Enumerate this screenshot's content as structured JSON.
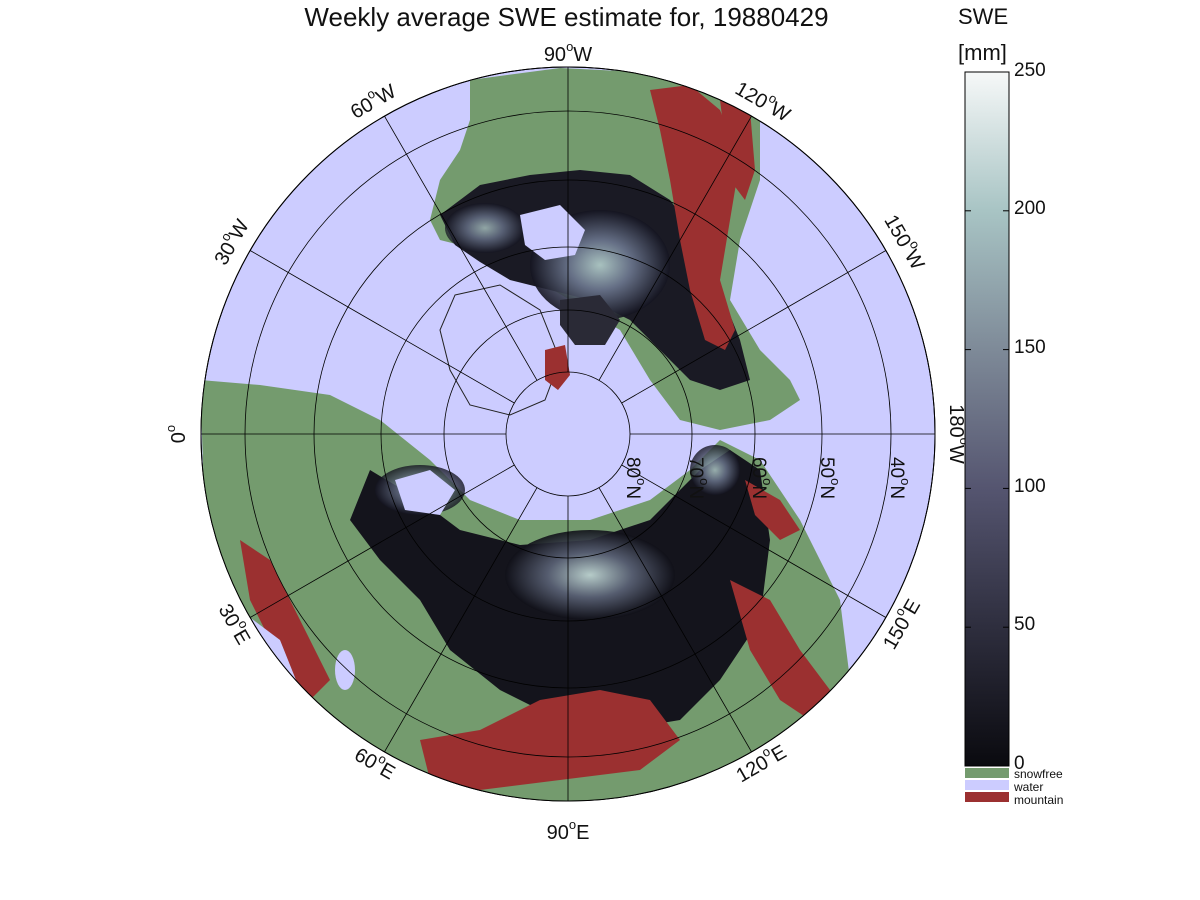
{
  "title": "Weekly average SWE estimate for, 19880429",
  "colorbar": {
    "title_line1": "SWE",
    "title_line2": "[mm]",
    "min": 0,
    "max": 250,
    "ticks": [
      "0",
      "50",
      "100",
      "150",
      "200",
      "250"
    ],
    "gradient_stops": [
      "#0a0a0f",
      "#2e2e3e",
      "#555570",
      "#7e8a98",
      "#a8c4c4",
      "#f6f8f8"
    ]
  },
  "legend": [
    {
      "label": "snowfree",
      "color": "#749b6e"
    },
    {
      "label": "water",
      "color": "#ccccff"
    },
    {
      "label": "mountain",
      "color": "#9b3030"
    }
  ],
  "map": {
    "projection": "north-polar-stereographic",
    "ocean_color": "#ccccff",
    "longitude_labels": [
      {
        "base": "90",
        "sup": "o",
        "suffix": "W"
      },
      {
        "base": "120",
        "sup": "o",
        "suffix": "W"
      },
      {
        "base": "150",
        "sup": "o",
        "suffix": "W"
      },
      {
        "base": "180",
        "sup": "o",
        "suffix": "W"
      },
      {
        "base": "150",
        "sup": "o",
        "suffix": "E"
      },
      {
        "base": "120",
        "sup": "o",
        "suffix": "E"
      },
      {
        "base": "90",
        "sup": "o",
        "suffix": "E"
      },
      {
        "base": "60",
        "sup": "o",
        "suffix": "E"
      },
      {
        "base": "30",
        "sup": "o",
        "suffix": "E"
      },
      {
        "base": "0",
        "sup": "o",
        "suffix": ""
      },
      {
        "base": "30",
        "sup": "o",
        "suffix": "W"
      },
      {
        "base": "60",
        "sup": "o",
        "suffix": "W"
      }
    ],
    "latitude_labels": [
      {
        "base": "80",
        "sup": "o",
        "suffix": "N"
      },
      {
        "base": "70",
        "sup": "o",
        "suffix": "N"
      },
      {
        "base": "60",
        "sup": "o",
        "suffix": "N"
      },
      {
        "base": "50",
        "sup": "o",
        "suffix": "N"
      },
      {
        "base": "40",
        "sup": "o",
        "suffix": "N"
      }
    ]
  }
}
